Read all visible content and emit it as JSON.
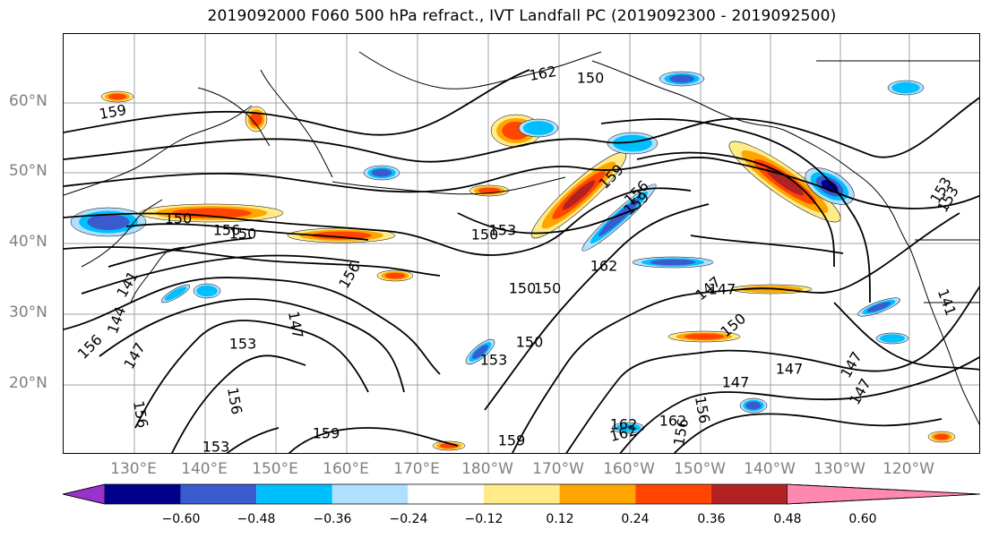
{
  "title": "2019092000 F060 500 hPa refract., IVT Landfall PC (2019092300 - 2019092500)",
  "lat_labels": [
    "60°N",
    "50°N",
    "40°N",
    "30°N",
    "20°N"
  ],
  "lon_labels": [
    "130°E",
    "140°E",
    "150°E",
    "160°E",
    "170°E",
    "180°W",
    "170°W",
    "160°W",
    "150°W",
    "140°W",
    "130°W",
    "120°W"
  ],
  "colorbar": {
    "tick_labels": [
      "−0.60",
      "−0.48",
      "−0.36",
      "−0.24",
      "−0.12",
      "0.12",
      "0.24",
      "0.36",
      "0.48",
      "0.60"
    ],
    "colors": [
      "#9932cc",
      "#00008b",
      "#3a5bcd",
      "#00bfff",
      "#b0e0ff",
      "#ffffff",
      "#ffeb88",
      "#ffa500",
      "#ff4500",
      "#b22222",
      "#ff88b0"
    ]
  },
  "contour_labels": [
    "150",
    "156",
    "162",
    "159",
    "153",
    "156",
    "150",
    "147",
    "147",
    "150",
    "159",
    "162",
    "156",
    "150",
    "147",
    "153",
    "150",
    "150",
    "159",
    "156",
    "153",
    "159",
    "162",
    "156",
    "147",
    "144",
    "153",
    "150",
    "147",
    "156",
    "141",
    "156",
    "159",
    "162",
    "153",
    "153",
    "147",
    "147",
    "156",
    "162",
    "150",
    "141",
    "147"
  ],
  "colors": {
    "coastline": "#000000",
    "grid": "#999999",
    "contour": "#000000",
    "axis_label": "#808080"
  }
}
